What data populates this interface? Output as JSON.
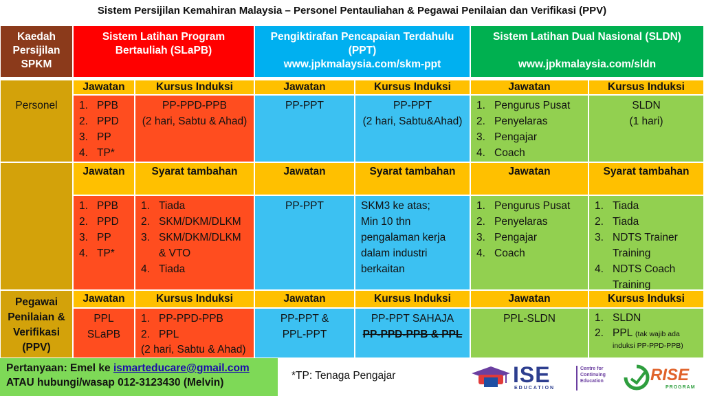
{
  "title": "Sistem Persijilan Kemahiran Malaysia – Personel Pentauliahan & Pegawai Penilaian dan Verifikasi (PPV)",
  "header": {
    "col0": "Kaedah Persijilan SPKM",
    "col0_lines": [
      "Kaedah",
      "Persijilan",
      "SPKM"
    ],
    "slapb_lines": [
      "Sistem Latihan Program",
      "Bertauliah (SLaPB)"
    ],
    "ppt_lines": [
      "Pengiktirafan Pencapaian Terdahulu",
      "(PPT)",
      "www.jpkmalaysia.com/skm-ppt"
    ],
    "sldn_lines": [
      "Sistem Latihan Dual Nasional (SLDN)",
      "",
      "www.jpkmalaysia.com/sldn"
    ]
  },
  "labels": {
    "jawatan": "Jawatan",
    "kursus_induksi": "Kursus Induksi",
    "syarat_tambahan": "Syarat tambahan"
  },
  "personel": {
    "label": "Personel",
    "slapb_jawatan": [
      "PPB",
      "PPD",
      "PP",
      "TP*"
    ],
    "slapb_kursus": [
      "PP-PPD-PPB",
      "(2 hari, Sabtu & Ahad)"
    ],
    "ppt_jawatan": "PP-PPT",
    "ppt_kursus": [
      "PP-PPT",
      "(2 hari, Sabtu&Ahad)"
    ],
    "sldn_jawatan": [
      "Pengurus Pusat",
      "Penyelaras",
      "Pengajar",
      "Coach"
    ],
    "sldn_kursus": [
      "SLDN",
      "(1 hari)"
    ]
  },
  "syarat": {
    "slapb_jawatan": [
      "PPB",
      "PPD",
      "PP",
      "TP*"
    ],
    "slapb_syarat": [
      {
        "n": "1.",
        "t": [
          "Tiada"
        ]
      },
      {
        "n": "2.",
        "t": [
          "SKM/DKM/DLKM"
        ]
      },
      {
        "n": "3.",
        "t": [
          "SKM/DKM/DLKM",
          "& VTO"
        ]
      },
      {
        "n": "4.",
        "t": [
          "Tiada"
        ]
      }
    ],
    "ppt_jawatan": "PP-PPT",
    "ppt_syarat": [
      "SKM3 ke atas;",
      "Min 10 thn",
      "pengalaman kerja",
      "dalam industri",
      "berkaitan"
    ],
    "sldn_jawatan": [
      "Pengurus Pusat",
      "Penyelaras",
      "Pengajar",
      "Coach"
    ],
    "sldn_syarat": [
      {
        "n": "1.",
        "t": [
          "Tiada"
        ]
      },
      {
        "n": "2.",
        "t": [
          "Tiada"
        ]
      },
      {
        "n": "3.",
        "t": [
          "NDTS Trainer",
          "Training"
        ]
      },
      {
        "n": "4.",
        "t": [
          "NDTS Coach",
          "Training"
        ]
      }
    ]
  },
  "ppv": {
    "label_lines": [
      "Pegawai",
      "Penilaian &",
      "Verifikasi",
      "(PPV)"
    ],
    "slapb_jawatan": [
      "PPL",
      "SLaPB"
    ],
    "slapb_kursus": [
      {
        "n": "1.",
        "t": "PP-PPD-PPB"
      },
      {
        "n": "2.",
        "t": "PPL"
      }
    ],
    "slapb_kursus_note": "(2 hari, Sabtu & Ahad)",
    "ppt_jawatan": [
      "PP-PPT &",
      "PPL-PPT"
    ],
    "ppt_kursus": "PP-PPT SAHAJA",
    "ppt_kursus_struck": "PP-PPD-PPB & PPL",
    "sldn_jawatan": "PPL-SLDN",
    "sldn_kursus_1": "SLDN",
    "sldn_kursus_2": "PPL",
    "sldn_kursus_2_note": "(tak wajib ada",
    "sldn_kursus_2_note2": "induksi PP-PPD-PPB)"
  },
  "footer": {
    "pertanyaan_prefix": "Pertanyaan: Emel ke ",
    "email": "ismarteducare@gmail.com",
    "hubungi": "ATAU hubungi/wasap 012-3123430 (Melvin)",
    "note": "*TP: Tenaga Pengajar",
    "logo_ise": "ISE",
    "logo_ise_sub": "EDUCATION",
    "logo_cce": [
      "Centre for",
      "Continuing",
      "Education"
    ],
    "logo_rise": "RISE",
    "logo_rise_sub": "PROGRAM"
  },
  "colors": {
    "brown": "#8b3a1b",
    "red": "#ff0000",
    "blue": "#00b0f0",
    "green": "#00b050",
    "gold": "#ffc000",
    "tan": "#d3a20a",
    "orange_red": "#ff4d1f",
    "light_blue": "#3cc1f2",
    "light_green": "#92d050"
  }
}
